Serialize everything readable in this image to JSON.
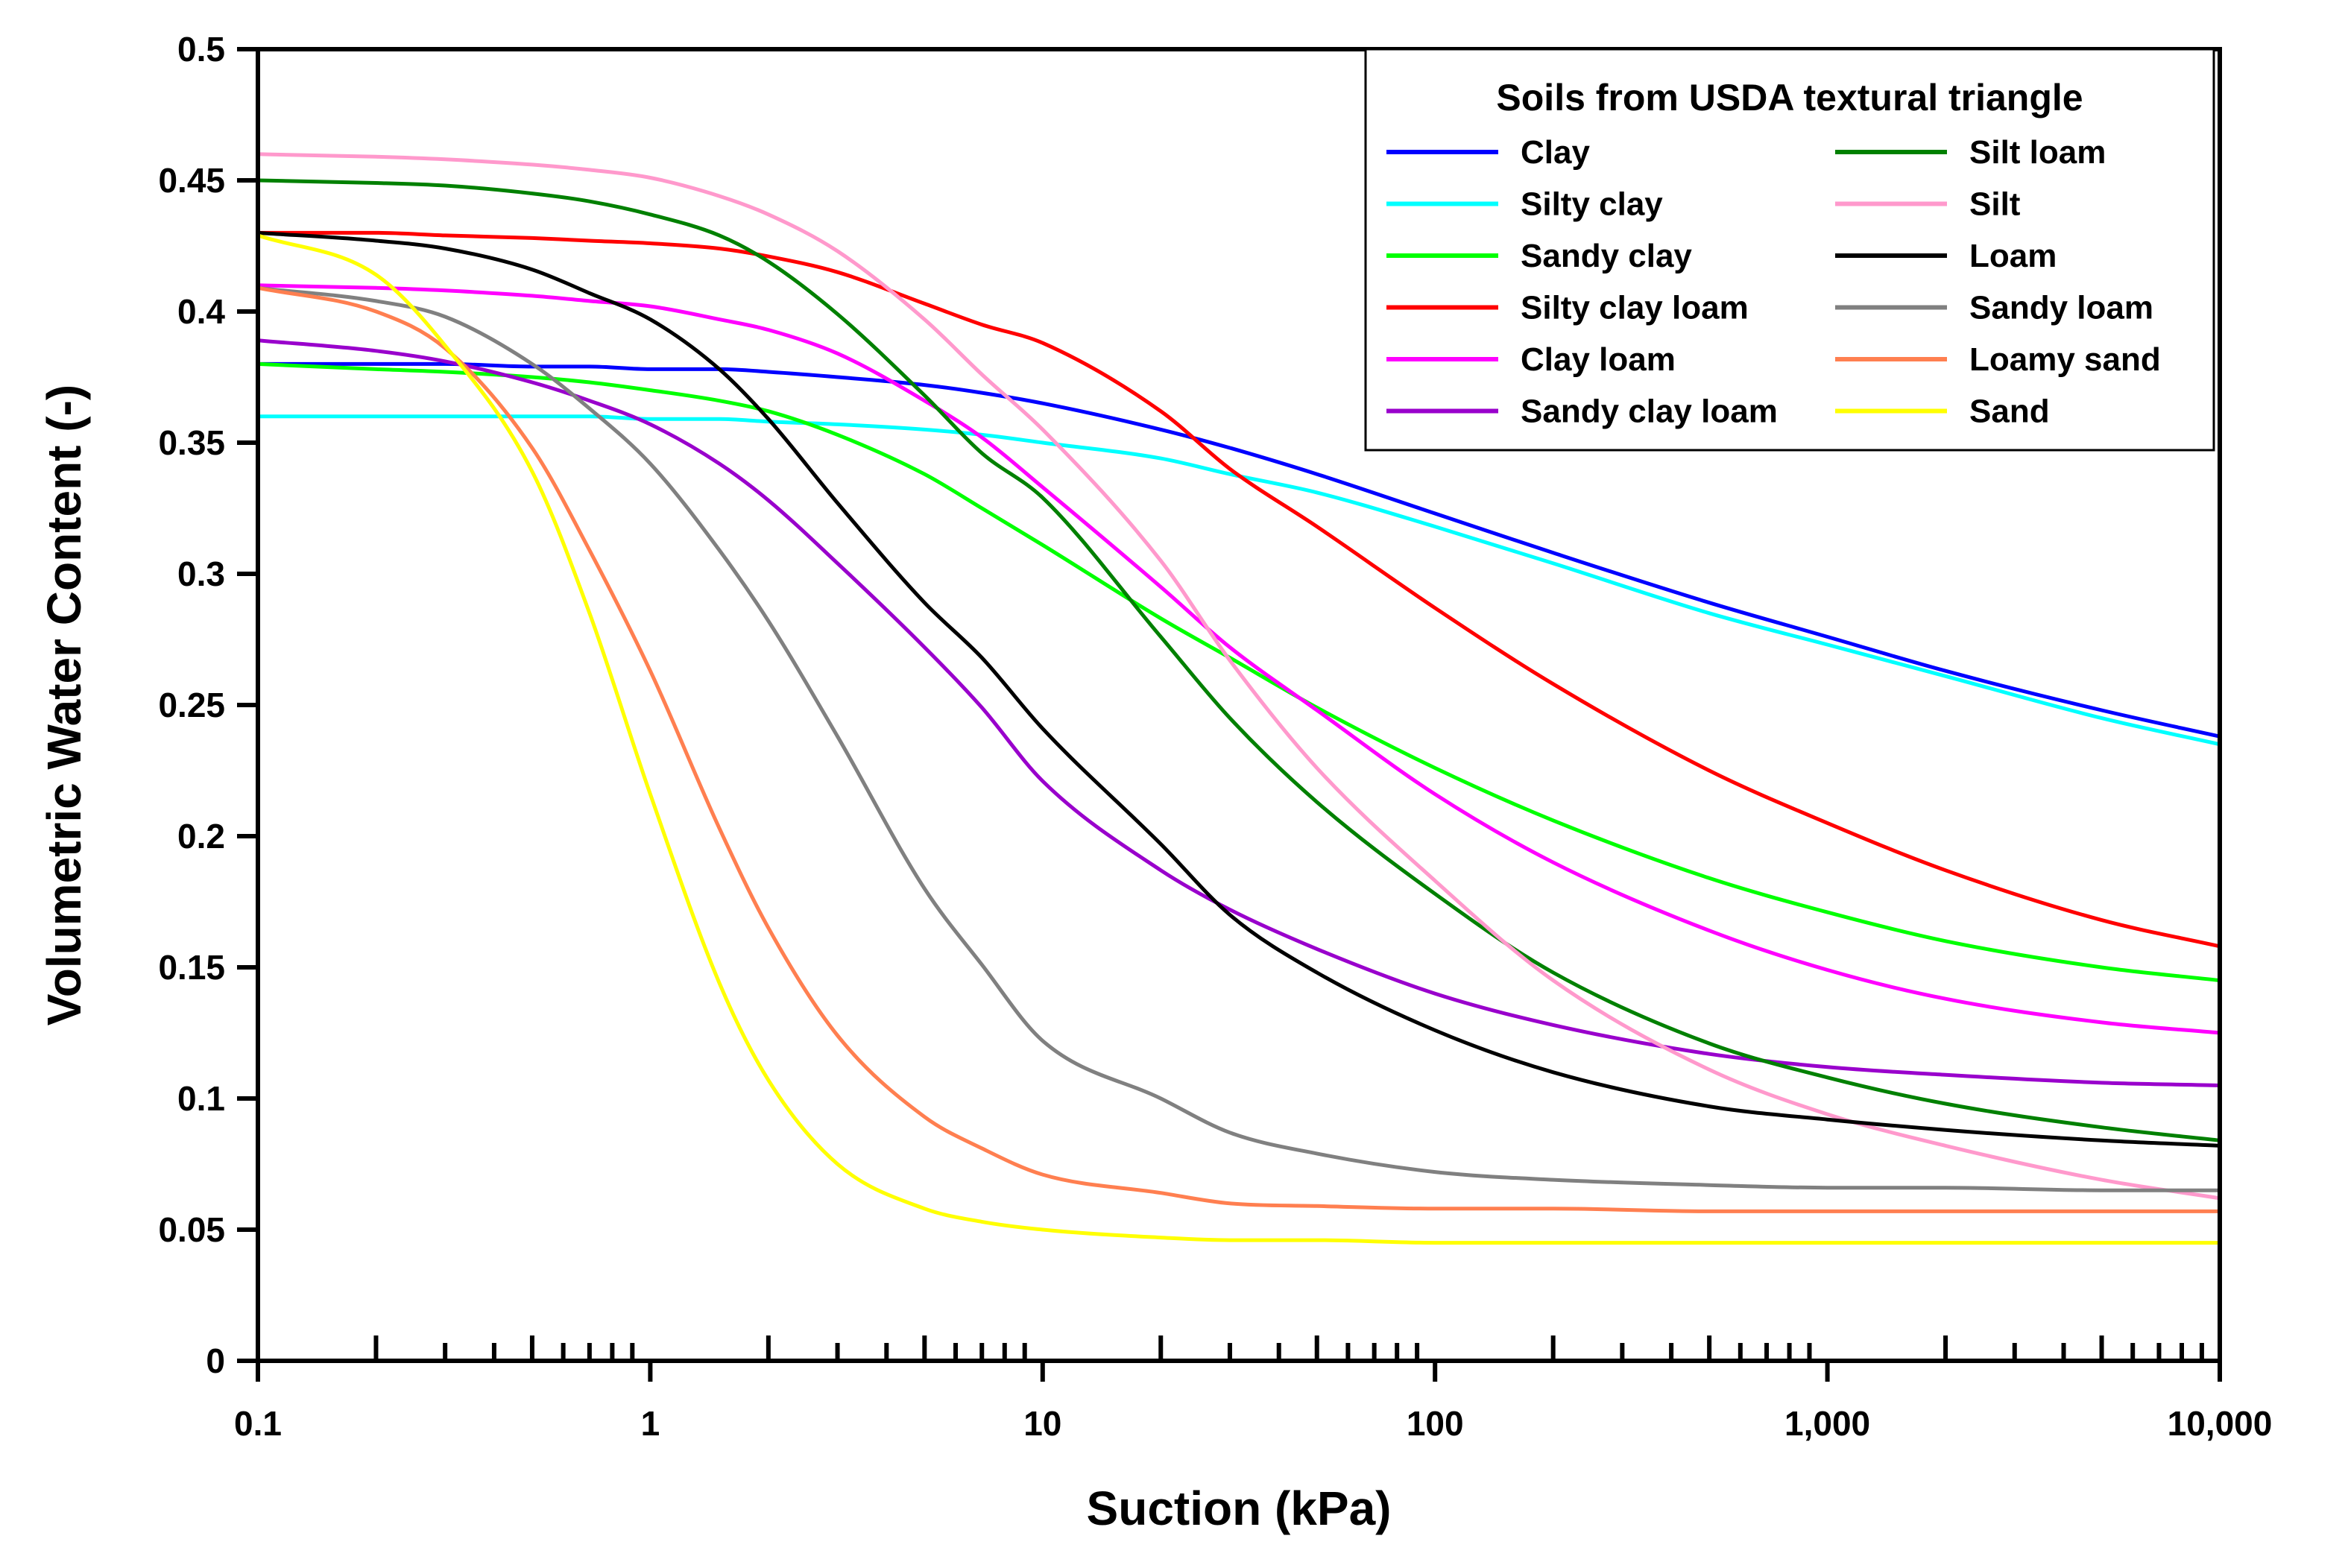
{
  "chart_data": {
    "type": "line",
    "title": "",
    "xlabel": "Suction (kPa)",
    "ylabel": "Volumetric Water Content (-)",
    "xscale": "log",
    "xlim": [
      0.1,
      10000
    ],
    "ylim": [
      0,
      0.5
    ],
    "grid": false,
    "x_ticks": [
      {
        "value": 0.1,
        "label": "0.1"
      },
      {
        "value": 1,
        "label": "1"
      },
      {
        "value": 10,
        "label": "10"
      },
      {
        "value": 100,
        "label": "100"
      },
      {
        "value": 1000,
        "label": "1,000"
      },
      {
        "value": 10000,
        "label": "10,000"
      }
    ],
    "y_ticks": [
      {
        "value": 0,
        "label": "0"
      },
      {
        "value": 0.05,
        "label": "0.05"
      },
      {
        "value": 0.1,
        "label": "0.1"
      },
      {
        "value": 0.15,
        "label": "0.15"
      },
      {
        "value": 0.2,
        "label": "0.2"
      },
      {
        "value": 0.25,
        "label": "0.25"
      },
      {
        "value": 0.3,
        "label": "0.3"
      },
      {
        "value": 0.35,
        "label": "0.35"
      },
      {
        "value": 0.4,
        "label": "0.4"
      },
      {
        "value": 0.45,
        "label": "0.45"
      },
      {
        "value": 0.5,
        "label": "0.5"
      }
    ],
    "legend": {
      "title": "Soils from USDA textural triangle",
      "placement": "top-right",
      "columns": 2
    },
    "x": [
      0.1,
      0.2,
      0.3,
      0.5,
      0.7,
      1,
      1.5,
      2,
      3,
      5,
      7,
      10,
      20,
      30,
      50,
      100,
      200,
      500,
      1000,
      2000,
      5000,
      10000
    ],
    "series": [
      {
        "name": "Clay",
        "color": "#0000FF",
        "values": [
          0.38,
          0.38,
          0.38,
          0.379,
          0.379,
          0.378,
          0.378,
          0.377,
          0.375,
          0.372,
          0.369,
          0.365,
          0.355,
          0.348,
          0.338,
          0.323,
          0.308,
          0.289,
          0.276,
          0.263,
          0.248,
          0.238
        ]
      },
      {
        "name": "Silty clay",
        "color": "#00FFFF",
        "values": [
          0.36,
          0.36,
          0.36,
          0.36,
          0.36,
          0.359,
          0.359,
          0.358,
          0.357,
          0.355,
          0.353,
          0.35,
          0.344,
          0.338,
          0.331,
          0.318,
          0.304,
          0.285,
          0.273,
          0.261,
          0.245,
          0.235
        ]
      },
      {
        "name": "Sandy clay",
        "color": "#00FF00",
        "values": [
          0.38,
          0.378,
          0.377,
          0.375,
          0.373,
          0.37,
          0.366,
          0.362,
          0.353,
          0.338,
          0.325,
          0.311,
          0.283,
          0.268,
          0.249,
          0.226,
          0.206,
          0.184,
          0.171,
          0.16,
          0.15,
          0.145
        ]
      },
      {
        "name": "Silty clay loam",
        "color": "#FF0000",
        "values": [
          0.43,
          0.43,
          0.429,
          0.428,
          0.427,
          0.426,
          0.424,
          0.421,
          0.415,
          0.403,
          0.395,
          0.388,
          0.362,
          0.34,
          0.318,
          0.287,
          0.258,
          0.225,
          0.205,
          0.187,
          0.168,
          0.158
        ]
      },
      {
        "name": "Clay loam",
        "color": "#FF00FF",
        "values": [
          0.41,
          0.409,
          0.408,
          0.406,
          0.404,
          0.402,
          0.397,
          0.393,
          0.384,
          0.366,
          0.352,
          0.333,
          0.295,
          0.272,
          0.248,
          0.216,
          0.19,
          0.164,
          0.149,
          0.138,
          0.129,
          0.125
        ]
      },
      {
        "name": "Sandy clay loam",
        "color": "#9900CC",
        "values": [
          0.389,
          0.385,
          0.381,
          0.373,
          0.366,
          0.357,
          0.342,
          0.328,
          0.304,
          0.272,
          0.249,
          0.221,
          0.187,
          0.172,
          0.157,
          0.14,
          0.128,
          0.117,
          0.112,
          0.109,
          0.106,
          0.105
        ]
      },
      {
        "name": "Silt loam",
        "color": "#008000",
        "values": [
          0.45,
          0.449,
          0.448,
          0.445,
          0.442,
          0.437,
          0.429,
          0.419,
          0.399,
          0.368,
          0.346,
          0.329,
          0.276,
          0.245,
          0.213,
          0.178,
          0.148,
          0.121,
          0.108,
          0.098,
          0.089,
          0.084
        ]
      },
      {
        "name": "Silt",
        "color": "#FF99CC",
        "values": [
          0.46,
          0.459,
          0.458,
          0.456,
          0.454,
          0.451,
          0.444,
          0.437,
          0.423,
          0.397,
          0.376,
          0.355,
          0.305,
          0.267,
          0.226,
          0.183,
          0.145,
          0.111,
          0.094,
          0.082,
          0.069,
          0.062
        ]
      },
      {
        "name": "Loam",
        "color": "#000000",
        "values": [
          0.43,
          0.427,
          0.424,
          0.416,
          0.407,
          0.397,
          0.378,
          0.359,
          0.327,
          0.289,
          0.268,
          0.241,
          0.197,
          0.17,
          0.148,
          0.126,
          0.11,
          0.097,
          0.092,
          0.088,
          0.084,
          0.082
        ]
      },
      {
        "name": "Sandy loam",
        "color": "#808080",
        "values": [
          0.409,
          0.404,
          0.398,
          0.38,
          0.363,
          0.342,
          0.309,
          0.282,
          0.238,
          0.18,
          0.151,
          0.122,
          0.1,
          0.087,
          0.079,
          0.072,
          0.069,
          0.067,
          0.066,
          0.066,
          0.065,
          0.065
        ]
      },
      {
        "name": "Loamy sand",
        "color": "#FF7F50",
        "values": [
          0.409,
          0.4,
          0.386,
          0.348,
          0.309,
          0.263,
          0.203,
          0.165,
          0.124,
          0.093,
          0.081,
          0.071,
          0.064,
          0.06,
          0.059,
          0.058,
          0.058,
          0.057,
          0.057,
          0.057,
          0.057,
          0.057
        ]
      },
      {
        "name": "Sand",
        "color": "#FFFF00",
        "values": [
          0.429,
          0.414,
          0.387,
          0.339,
          0.285,
          0.216,
          0.144,
          0.107,
          0.075,
          0.058,
          0.053,
          0.05,
          0.047,
          0.046,
          0.046,
          0.045,
          0.045,
          0.045,
          0.045,
          0.045,
          0.045,
          0.045
        ]
      }
    ]
  }
}
